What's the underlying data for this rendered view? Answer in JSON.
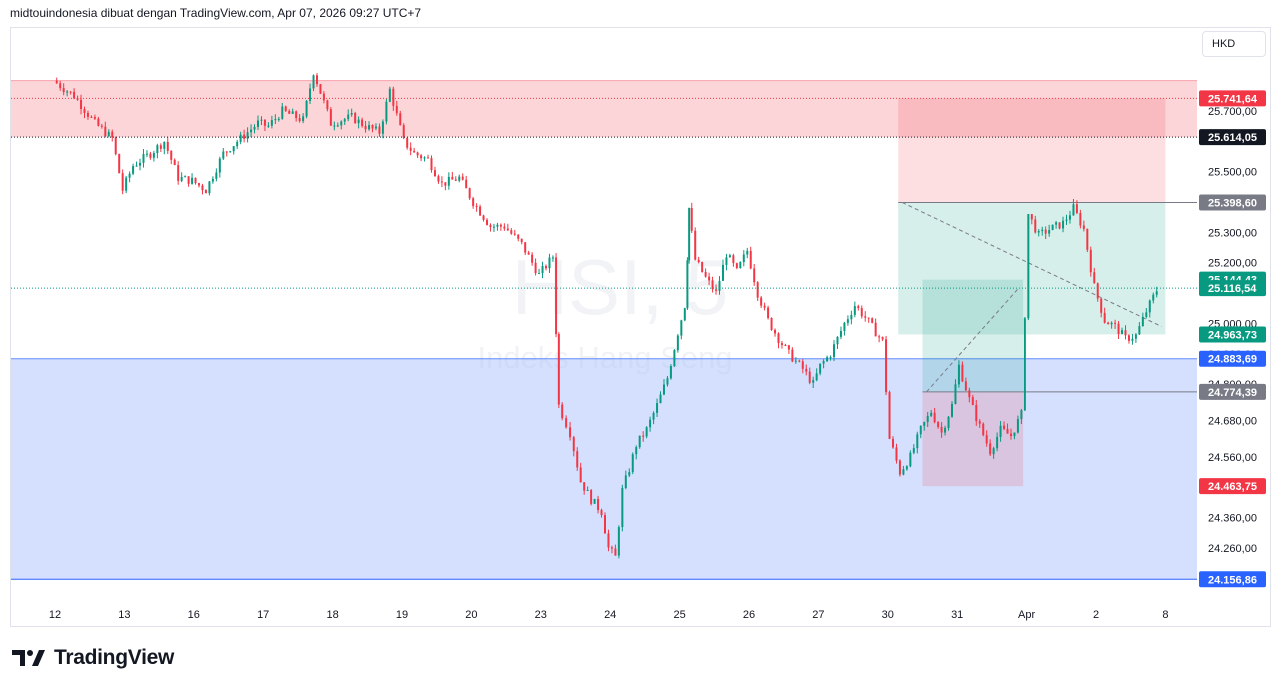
{
  "header": {
    "caption": "midtouindonesia dibuat dengan TradingView.com, Apr 07, 2026 09:27 UTC+7"
  },
  "currency": "HKD",
  "brand": {
    "name": "TradingView"
  },
  "watermark": {
    "symbol": "HSI, 5",
    "name": "Indeks Hang Seng"
  },
  "chart_data": {
    "type": "candlestick",
    "title": "",
    "xlabel": "",
    "ylabel": "",
    "ylim": [
      24080,
      25960
    ],
    "x_tick_labels": [
      "12",
      "13",
      "16",
      "17",
      "18",
      "19",
      "20",
      "23",
      "24",
      "25",
      "26",
      "27",
      "30",
      "31",
      "Apr",
      "2",
      "8"
    ],
    "y_tick_values": [
      24260,
      24360,
      24560,
      24680,
      24800,
      24900,
      25000,
      25200,
      25300,
      25500,
      25700
    ],
    "y_tick_labels": [
      "24.260,00",
      "24.360,00",
      "24.560,00",
      "24.680,00",
      "24.800,00",
      "24.900,00",
      "25.000,00",
      "25.200,00",
      "25.300,00",
      "25.500,00",
      "25.700,00"
    ],
    "price_path": [
      [
        0,
        25800
      ],
      [
        0.3,
        25750
      ],
      [
        0.6,
        25660
      ],
      [
        0.85,
        25610
      ],
      [
        1.0,
        25440
      ],
      [
        1.15,
        25520
      ],
      [
        1.4,
        25560
      ],
      [
        1.6,
        25600
      ],
      [
        1.8,
        25480
      ],
      [
        2.0,
        25470
      ],
      [
        2.2,
        25440
      ],
      [
        2.45,
        25560
      ],
      [
        2.7,
        25610
      ],
      [
        2.95,
        25660
      ],
      [
        3.1,
        25650
      ],
      [
        3.3,
        25700
      ],
      [
        3.6,
        25670
      ],
      [
        3.75,
        25830
      ],
      [
        4.0,
        25660
      ],
      [
        4.3,
        25680
      ],
      [
        4.5,
        25650
      ],
      [
        4.7,
        25630
      ],
      [
        4.85,
        25770
      ],
      [
        5.05,
        25600
      ],
      [
        5.2,
        25560
      ],
      [
        5.4,
        25540
      ],
      [
        5.6,
        25460
      ],
      [
        5.85,
        25480
      ],
      [
        6.05,
        25400
      ],
      [
        6.3,
        25320
      ],
      [
        6.5,
        25320
      ],
      [
        6.75,
        25260
      ],
      [
        7.0,
        25160
      ],
      [
        7.2,
        25220
      ],
      [
        7.28,
        24730
      ],
      [
        7.45,
        24640
      ],
      [
        7.6,
        24480
      ],
      [
        7.75,
        24420
      ],
      [
        7.9,
        24380
      ],
      [
        8.0,
        24260
      ],
      [
        8.1,
        24230
      ],
      [
        8.2,
        24450
      ],
      [
        8.3,
        24520
      ],
      [
        8.4,
        24600
      ],
      [
        8.55,
        24650
      ],
      [
        8.7,
        24730
      ],
      [
        8.85,
        24820
      ],
      [
        9.0,
        24970
      ],
      [
        9.1,
        25060
      ],
      [
        9.15,
        25380
      ],
      [
        9.25,
        25210
      ],
      [
        9.4,
        25150
      ],
      [
        9.55,
        25100
      ],
      [
        9.7,
        25230
      ],
      [
        9.85,
        25170
      ],
      [
        10.0,
        25240
      ],
      [
        10.15,
        25100
      ],
      [
        10.3,
        25010
      ],
      [
        10.45,
        24950
      ],
      [
        10.6,
        24900
      ],
      [
        10.8,
        24850
      ],
      [
        10.95,
        24800
      ],
      [
        11.05,
        24860
      ],
      [
        11.2,
        24900
      ],
      [
        11.4,
        25000
      ],
      [
        11.55,
        25060
      ],
      [
        11.7,
        25020
      ],
      [
        11.95,
        24940
      ],
      [
        12.05,
        24620
      ],
      [
        12.2,
        24510
      ],
      [
        12.35,
        24560
      ],
      [
        12.5,
        24650
      ],
      [
        12.65,
        24710
      ],
      [
        12.8,
        24640
      ],
      [
        12.95,
        24730
      ],
      [
        13.05,
        24860
      ],
      [
        13.2,
        24750
      ],
      [
        13.35,
        24660
      ],
      [
        13.5,
        24580
      ],
      [
        13.65,
        24650
      ],
      [
        13.8,
        24630
      ],
      [
        13.95,
        24700
      ],
      [
        14.05,
        25360
      ],
      [
        14.2,
        25290
      ],
      [
        14.35,
        25310
      ],
      [
        14.55,
        25330
      ],
      [
        14.7,
        25380
      ],
      [
        14.85,
        25310
      ],
      [
        15.0,
        25120
      ],
      [
        15.15,
        25010
      ],
      [
        15.3,
        24990
      ],
      [
        15.45,
        24950
      ],
      [
        15.6,
        24960
      ],
      [
        15.75,
        25040
      ],
      [
        15.9,
        25110
      ]
    ],
    "price_lines": [
      {
        "value": 25741.64,
        "label": "25.741,64",
        "color": "#f23645",
        "style": "dotted"
      },
      {
        "value": 25614.05,
        "label": "25.614,05",
        "color": "#131722",
        "style": "dotted"
      },
      {
        "value": 25116.54,
        "label": "25.116,54",
        "color": "#089981",
        "style": "dotted"
      }
    ],
    "price_labels": [
      {
        "value": 25741.64,
        "label": "25.741,64",
        "color": "#f23645"
      },
      {
        "value": 25614.05,
        "label": "25.614,05",
        "color": "#131722"
      },
      {
        "value": 25398.6,
        "label": "25.398,60",
        "color": "#787b86"
      },
      {
        "value": 25144.43,
        "label": "25.144,43",
        "color": "#089981"
      },
      {
        "value": 25116.54,
        "label": "25.116,54",
        "color": "#089981"
      },
      {
        "value": 24963.73,
        "label": "24.963,73",
        "color": "#089981"
      },
      {
        "value": 24883.69,
        "label": "24.883,69",
        "color": "#2962ff"
      },
      {
        "value": 24774.39,
        "label": "24.774,39",
        "color": "#787b86"
      },
      {
        "value": 24463.75,
        "label": "24.463,75",
        "color": "#f23645"
      },
      {
        "value": 24156.86,
        "label": "24.156,86",
        "color": "#2962ff"
      }
    ],
    "zones": [
      {
        "kind": "resistance",
        "from": 25614.05,
        "to": 25800,
        "x_start": 0,
        "x_end": 16.6,
        "color": "#f7a1a9"
      },
      {
        "kind": "support",
        "from": 24156.86,
        "to": 24883.69,
        "x_start": 0,
        "x_end": 16.6,
        "color": "#aac2fb"
      }
    ],
    "positions": [
      {
        "x_start": 12.15,
        "x_end": 16.0,
        "entry": 25398.6,
        "stop": 25741.64,
        "target": 24963.73
      },
      {
        "x_start": 12.5,
        "x_end": 13.95,
        "entry": 24774.39,
        "stop": 24463.75,
        "target": 25144.43
      }
    ]
  }
}
